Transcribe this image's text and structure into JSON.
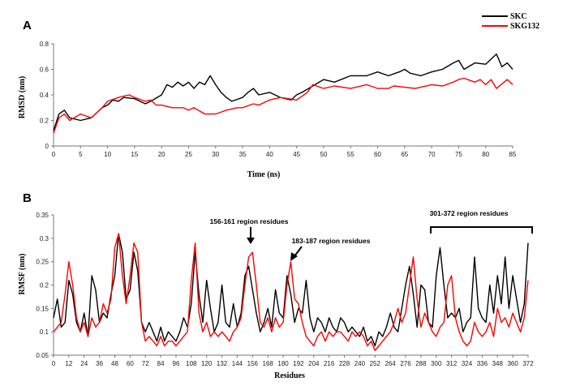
{
  "chart_data": [
    {
      "panel": "A",
      "type": "line",
      "xlabel": "Time (ns)",
      "ylabel": "RMSD (nm)",
      "xlim": [
        0,
        85
      ],
      "ylim": [
        0,
        0.8
      ],
      "xticks": [
        0,
        5,
        10,
        15,
        20,
        25,
        30,
        35,
        40,
        45,
        50,
        55,
        60,
        65,
        70,
        75,
        80,
        85
      ],
      "yticks": [
        0,
        0.2,
        0.4,
        0.6,
        0.8
      ],
      "ytick_labels": [
        "0",
        "0.2",
        "0.4",
        "0.6",
        "0.8"
      ],
      "legend_position": "top-right",
      "series": [
        {
          "name": "SKC",
          "color": "#000000",
          "x": [
            0,
            1,
            2,
            3,
            5,
            7,
            9,
            10,
            11,
            12,
            13,
            15,
            17,
            18,
            20,
            21,
            22,
            23,
            24,
            25,
            26,
            27,
            28,
            29,
            30,
            31,
            32,
            33,
            35,
            36,
            37,
            38,
            40,
            42,
            44,
            45,
            46,
            48,
            50,
            52,
            55,
            58,
            60,
            62,
            64,
            65,
            66,
            68,
            70,
            72,
            74,
            75,
            76,
            78,
            80,
            81,
            82,
            83,
            84,
            85
          ],
          "y": [
            0.12,
            0.25,
            0.28,
            0.22,
            0.2,
            0.22,
            0.3,
            0.32,
            0.36,
            0.35,
            0.38,
            0.37,
            0.33,
            0.35,
            0.4,
            0.48,
            0.46,
            0.5,
            0.47,
            0.5,
            0.45,
            0.5,
            0.48,
            0.55,
            0.48,
            0.42,
            0.38,
            0.35,
            0.38,
            0.42,
            0.45,
            0.4,
            0.42,
            0.38,
            0.36,
            0.4,
            0.42,
            0.47,
            0.52,
            0.5,
            0.55,
            0.55,
            0.58,
            0.55,
            0.58,
            0.6,
            0.57,
            0.55,
            0.58,
            0.6,
            0.65,
            0.67,
            0.6,
            0.65,
            0.64,
            0.68,
            0.72,
            0.62,
            0.65,
            0.6
          ]
        },
        {
          "name": "SKG132",
          "color": "#ff0000",
          "x": [
            0,
            1,
            2,
            3,
            5,
            7,
            9,
            10,
            12,
            14,
            15,
            17,
            18,
            19,
            20,
            22,
            24,
            25,
            26,
            28,
            30,
            32,
            34,
            35,
            37,
            38,
            40,
            42,
            45,
            47,
            48,
            50,
            52,
            55,
            58,
            60,
            62,
            63,
            65,
            67,
            70,
            72,
            74,
            75,
            76,
            78,
            79,
            80,
            81,
            82,
            84,
            85
          ],
          "y": [
            0.1,
            0.22,
            0.25,
            0.2,
            0.25,
            0.22,
            0.3,
            0.35,
            0.38,
            0.4,
            0.38,
            0.35,
            0.36,
            0.32,
            0.32,
            0.3,
            0.3,
            0.28,
            0.3,
            0.25,
            0.25,
            0.28,
            0.3,
            0.3,
            0.33,
            0.32,
            0.36,
            0.38,
            0.36,
            0.42,
            0.48,
            0.45,
            0.47,
            0.45,
            0.48,
            0.45,
            0.45,
            0.47,
            0.46,
            0.45,
            0.48,
            0.47,
            0.5,
            0.52,
            0.53,
            0.5,
            0.52,
            0.48,
            0.52,
            0.45,
            0.52,
            0.48
          ]
        }
      ]
    },
    {
      "panel": "B",
      "type": "line",
      "xlabel": "Residues",
      "ylabel": "RMSF (nm)",
      "xlim": [
        0,
        372
      ],
      "ylim": [
        0.05,
        0.35
      ],
      "xticks": [
        0,
        12,
        24,
        36,
        48,
        60,
        72,
        84,
        96,
        108,
        120,
        132,
        144,
        156,
        168,
        180,
        192,
        204,
        216,
        228,
        240,
        252,
        264,
        276,
        288,
        300,
        312,
        324,
        336,
        348,
        360,
        372
      ],
      "yticks": [
        0.05,
        0.1,
        0.15,
        0.2,
        0.25,
        0.3,
        0.35
      ],
      "ytick_labels": [
        "0.05",
        "0.1",
        "0.15",
        "0.2",
        "0.25",
        "0.3",
        "0.35"
      ],
      "annotations": [
        {
          "text": "156-161 region residues",
          "x": 156,
          "y": 0.31
        },
        {
          "text": "183-187 region residues",
          "x": 187,
          "y": 0.25
        },
        {
          "text": "301-372 region residues",
          "x": 336,
          "y": 0.315
        }
      ],
      "series": [
        {
          "name": "SKC",
          "color": "#000000",
          "x": [
            0,
            3,
            6,
            9,
            12,
            15,
            18,
            21,
            24,
            27,
            30,
            33,
            36,
            39,
            42,
            45,
            48,
            51,
            54,
            57,
            60,
            63,
            66,
            69,
            72,
            75,
            78,
            81,
            84,
            87,
            90,
            93,
            96,
            99,
            102,
            105,
            108,
            111,
            114,
            117,
            120,
            123,
            126,
            129,
            132,
            135,
            138,
            141,
            144,
            147,
            150,
            153,
            156,
            159,
            162,
            165,
            168,
            171,
            174,
            177,
            180,
            183,
            186,
            189,
            192,
            195,
            198,
            201,
            204,
            207,
            210,
            213,
            216,
            219,
            222,
            225,
            228,
            231,
            234,
            237,
            240,
            243,
            246,
            249,
            252,
            255,
            258,
            261,
            264,
            267,
            270,
            273,
            276,
            279,
            282,
            285,
            288,
            291,
            294,
            297,
            300,
            303,
            306,
            309,
            312,
            315,
            318,
            321,
            324,
            327,
            330,
            333,
            336,
            339,
            342,
            345,
            348,
            351,
            354,
            357,
            360,
            363,
            366,
            369,
            372
          ],
          "y": [
            0.13,
            0.17,
            0.11,
            0.12,
            0.21,
            0.18,
            0.12,
            0.1,
            0.14,
            0.09,
            0.22,
            0.19,
            0.12,
            0.14,
            0.13,
            0.18,
            0.22,
            0.31,
            0.27,
            0.17,
            0.19,
            0.27,
            0.23,
            0.12,
            0.1,
            0.12,
            0.1,
            0.08,
            0.11,
            0.08,
            0.1,
            0.09,
            0.08,
            0.1,
            0.13,
            0.11,
            0.16,
            0.27,
            0.18,
            0.12,
            0.21,
            0.15,
            0.1,
            0.12,
            0.2,
            0.12,
            0.11,
            0.16,
            0.11,
            0.14,
            0.22,
            0.24,
            0.19,
            0.14,
            0.1,
            0.12,
            0.15,
            0.11,
            0.19,
            0.14,
            0.13,
            0.22,
            0.18,
            0.12,
            0.15,
            0.14,
            0.21,
            0.13,
            0.1,
            0.13,
            0.12,
            0.1,
            0.13,
            0.11,
            0.1,
            0.13,
            0.12,
            0.1,
            0.11,
            0.1,
            0.09,
            0.11,
            0.08,
            0.09,
            0.07,
            0.1,
            0.09,
            0.11,
            0.14,
            0.11,
            0.1,
            0.15,
            0.2,
            0.24,
            0.18,
            0.11,
            0.2,
            0.19,
            0.12,
            0.11,
            0.22,
            0.28,
            0.2,
            0.13,
            0.14,
            0.13,
            0.15,
            0.1,
            0.12,
            0.13,
            0.26,
            0.15,
            0.13,
            0.12,
            0.2,
            0.14,
            0.22,
            0.16,
            0.26,
            0.15,
            0.22,
            0.17,
            0.12,
            0.16,
            0.29
          ]
        },
        {
          "name": "SKG132",
          "color": "#ff0000",
          "x": [
            0,
            3,
            6,
            9,
            12,
            15,
            18,
            21,
            24,
            27,
            30,
            33,
            36,
            39,
            42,
            45,
            48,
            51,
            54,
            57,
            60,
            63,
            66,
            69,
            72,
            75,
            78,
            81,
            84,
            87,
            90,
            93,
            96,
            99,
            102,
            105,
            108,
            111,
            114,
            117,
            120,
            123,
            126,
            129,
            132,
            135,
            138,
            141,
            144,
            147,
            150,
            153,
            156,
            159,
            162,
            165,
            168,
            171,
            174,
            177,
            180,
            183,
            186,
            189,
            192,
            195,
            198,
            201,
            204,
            207,
            210,
            213,
            216,
            219,
            222,
            225,
            228,
            231,
            234,
            237,
            240,
            243,
            246,
            249,
            252,
            255,
            258,
            261,
            264,
            267,
            270,
            273,
            276,
            279,
            282,
            285,
            288,
            291,
            294,
            297,
            300,
            303,
            306,
            309,
            312,
            315,
            318,
            321,
            324,
            327,
            330,
            333,
            336,
            339,
            342,
            345,
            348,
            351,
            354,
            357,
            360,
            363,
            366,
            369,
            372
          ],
          "y": [
            0.1,
            0.11,
            0.12,
            0.18,
            0.25,
            0.2,
            0.13,
            0.1,
            0.12,
            0.09,
            0.13,
            0.11,
            0.12,
            0.16,
            0.14,
            0.17,
            0.28,
            0.31,
            0.22,
            0.16,
            0.22,
            0.29,
            0.27,
            0.12,
            0.08,
            0.09,
            0.08,
            0.07,
            0.09,
            0.07,
            0.08,
            0.08,
            0.07,
            0.08,
            0.09,
            0.1,
            0.21,
            0.29,
            0.14,
            0.1,
            0.12,
            0.09,
            0.1,
            0.09,
            0.1,
            0.09,
            0.08,
            0.1,
            0.11,
            0.13,
            0.2,
            0.26,
            0.27,
            0.2,
            0.12,
            0.11,
            0.13,
            0.1,
            0.13,
            0.11,
            0.12,
            0.2,
            0.25,
            0.17,
            0.16,
            0.12,
            0.09,
            0.08,
            0.07,
            0.09,
            0.1,
            0.08,
            0.1,
            0.09,
            0.1,
            0.1,
            0.09,
            0.08,
            0.1,
            0.09,
            0.1,
            0.09,
            0.07,
            0.08,
            0.06,
            0.07,
            0.08,
            0.09,
            0.1,
            0.12,
            0.15,
            0.12,
            0.14,
            0.2,
            0.26,
            0.17,
            0.11,
            0.14,
            0.12,
            0.1,
            0.09,
            0.11,
            0.12,
            0.2,
            0.22,
            0.13,
            0.1,
            0.08,
            0.07,
            0.08,
            0.12,
            0.1,
            0.09,
            0.1,
            0.12,
            0.09,
            0.15,
            0.12,
            0.13,
            0.11,
            0.14,
            0.12,
            0.1,
            0.13,
            0.21
          ]
        }
      ]
    }
  ]
}
